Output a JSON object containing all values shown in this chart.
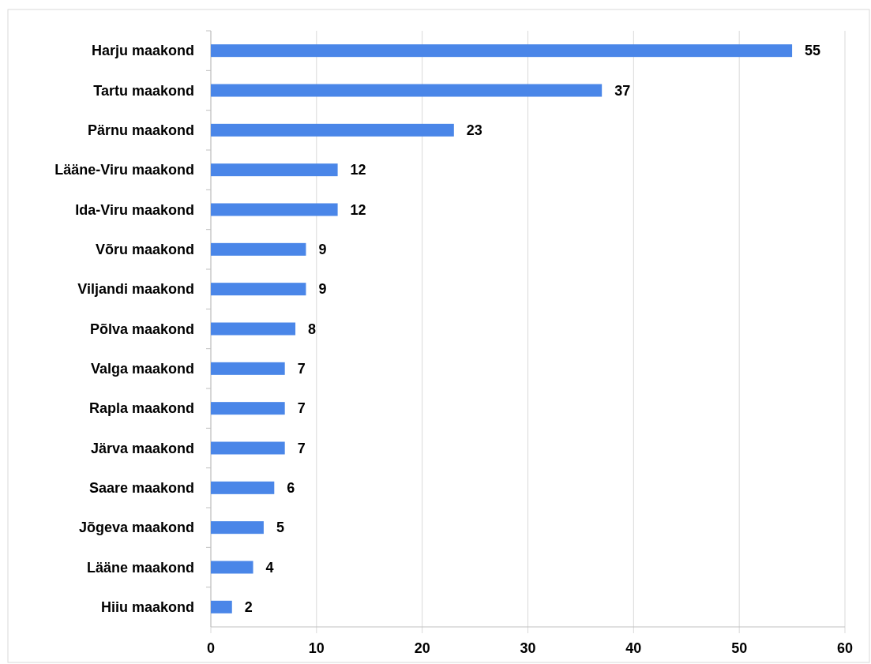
{
  "chart_data": {
    "type": "bar",
    "orientation": "horizontal",
    "categories": [
      "Harju maakond",
      "Tartu maakond",
      "Pärnu maakond",
      "Lääne-Viru maakond",
      "Ida-Viru maakond",
      "Võru maakond",
      "Viljandi maakond",
      "Põlva maakond",
      "Valga maakond",
      "Rapla maakond",
      "Järva maakond",
      "Saare maakond",
      "Jõgeva maakond",
      "Lääne maakond",
      "Hiiu maakond"
    ],
    "values": [
      55,
      37,
      23,
      12,
      12,
      9,
      9,
      8,
      7,
      7,
      7,
      6,
      5,
      4,
      2
    ],
    "color": "#4a86e8",
    "xlim": [
      0,
      60
    ],
    "xticks": [
      0,
      10,
      20,
      30,
      40,
      50,
      60
    ],
    "grid": "x",
    "data_labels": true
  }
}
